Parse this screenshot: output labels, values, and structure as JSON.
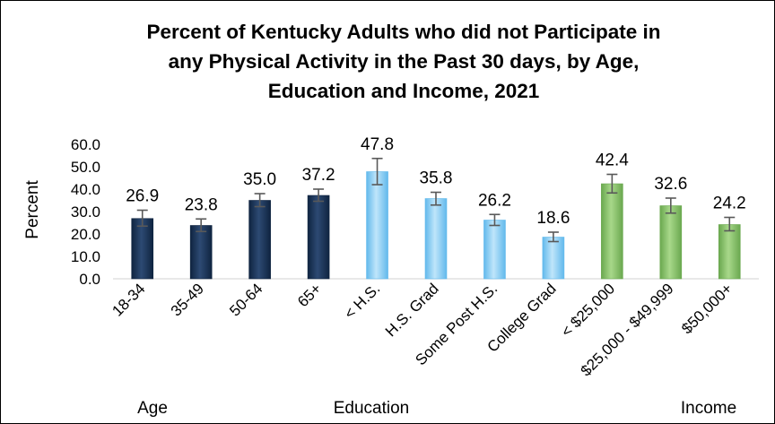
{
  "chart_data": {
    "type": "bar",
    "title_lines": [
      "Percent of Kentucky Adults who did not Participate in",
      "any Physical Activity in the Past 30 days, by Age,",
      "Education and Income, 2021"
    ],
    "ylabel": "Percent",
    "ylim": [
      0,
      60
    ],
    "yticks": [
      "0.0",
      "10.0",
      "20.0",
      "30.0",
      "40.0",
      "50.0",
      "60.0"
    ],
    "grid": false,
    "error_bars": true,
    "categories": [
      "18-34",
      "35-49",
      "50-64",
      "65+",
      "< H.S.",
      "H.S. Grad",
      "Some Post H.S.",
      "College Grad",
      "< $25,000",
      "$25,000 - $49,999",
      "$50,000+"
    ],
    "values": [
      26.9,
      23.8,
      35.0,
      37.2,
      47.8,
      35.8,
      26.2,
      18.6,
      42.4,
      32.6,
      24.2
    ],
    "value_labels": [
      "26.9",
      "23.8",
      "35.0",
      "37.2",
      "47.8",
      "35.8",
      "26.2",
      "18.6",
      "42.4",
      "32.6",
      "24.2"
    ],
    "error_low": [
      23.5,
      21.1,
      32.2,
      34.6,
      42.0,
      32.9,
      23.8,
      16.6,
      38.3,
      29.3,
      21.4
    ],
    "error_high": [
      30.6,
      26.7,
      38.0,
      40.0,
      53.7,
      38.6,
      28.7,
      20.8,
      46.6,
      36.0,
      27.4
    ],
    "groups": [
      {
        "label": "Age",
        "start": 0,
        "end": 3,
        "color": "#0f2440",
        "highlight": "#2d4a73"
      },
      {
        "label": "Education",
        "start": 4,
        "end": 7,
        "color": "#62b9ec",
        "highlight": "#bfe5fa"
      },
      {
        "label": "Income",
        "start": 8,
        "end": 10,
        "color": "#6aa84f",
        "highlight": "#a8d88a"
      }
    ]
  }
}
